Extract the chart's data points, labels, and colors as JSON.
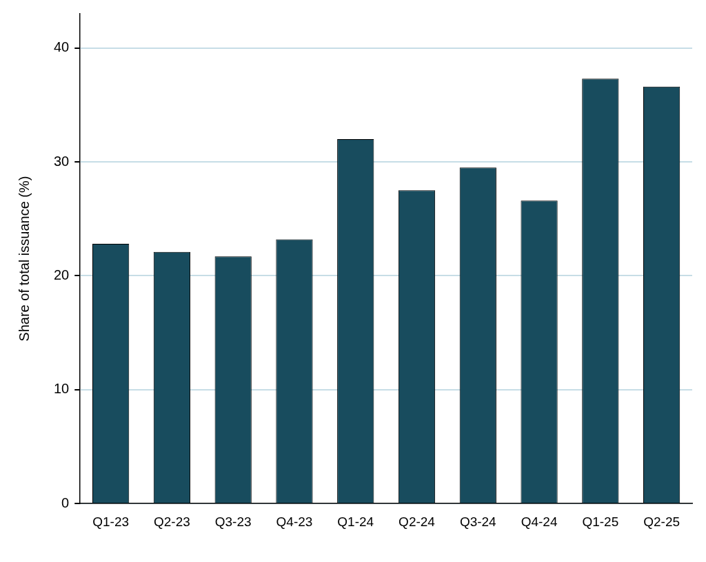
{
  "chart_data": {
    "type": "bar",
    "ylabel": "Share of total issuance (%)",
    "categories": [
      "Q1-23",
      "Q2-23",
      "Q3-23",
      "Q4-23",
      "Q1-24",
      "Q2-24",
      "Q3-24",
      "Q4-24",
      "Q1-25",
      "Q2-25"
    ],
    "values": [
      22.8,
      22.1,
      21.7,
      23.2,
      32.0,
      27.5,
      29.5,
      26.6,
      37.3,
      36.6
    ],
    "color": "#184c5e",
    "ylim": [
      0,
      43
    ],
    "yticks": [
      0,
      10,
      20,
      30,
      40
    ],
    "grid": "y",
    "legend": false
  }
}
